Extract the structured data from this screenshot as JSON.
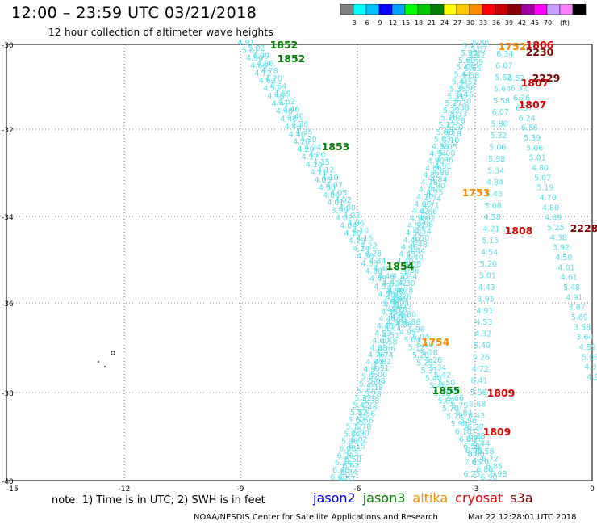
{
  "title": "12:00 – 23:59 UTC 03/21/2018",
  "subtitle": "12 hour collection of altimeter wave heights",
  "colorbar": {
    "unit": "(ft)",
    "colors": [
      "#808080",
      "#00ffff",
      "#00c0ff",
      "#0000ff",
      "#00a0ff",
      "#00ff00",
      "#00c800",
      "#008000",
      "#ffff00",
      "#ffc800",
      "#ff8c00",
      "#ff0000",
      "#c80000",
      "#8b0000",
      "#a000a0",
      "#ff00ff",
      "#c8a0ff",
      "#ff80ff",
      "#000000"
    ],
    "labels": [
      "3",
      "6",
      "9",
      "12",
      "15",
      "18",
      "21",
      "24",
      "27",
      "30",
      "33",
      "36",
      "39",
      "42",
      "45",
      "70"
    ]
  },
  "axes": {
    "y_ticks": [
      "-30",
      "-32",
      "-34",
      "-36",
      "-38",
      "-40"
    ],
    "x_ticks": [
      "-15",
      "-12",
      "-9",
      "-6",
      "-3",
      "0"
    ]
  },
  "tracks": [
    {
      "id": "jason3-desc",
      "color": "#55dfe8",
      "labels": [
        "4.91",
        "5.07",
        "4.90",
        "4.66",
        "4.72",
        "4.62",
        "4.51",
        "4.48",
        "4.41",
        "4.40",
        "4.48",
        "4.43",
        "4.40",
        "4.28",
        "4.20",
        "4.17",
        "4.14",
        "4.11",
        "4.05",
        "4.08",
        "4.04",
        "4.01",
        "3.99",
        "4.02",
        "4.04",
        "4.10",
        "4.19",
        "4.24",
        "4.30",
        "4.33",
        "4.38",
        "4.45",
        "4.52",
        "4.58",
        "4.62",
        "4.70",
        "4.81",
        "4.86",
        "4.95",
        "5.04",
        "5.12",
        "5.20",
        "5.25",
        "5.31",
        "5.40",
        "5.48",
        "5.56",
        "5.62",
        "5.70",
        "5.78",
        "5.90",
        "6.10",
        "6.30",
        "6.50",
        "6.60",
        "6.70",
        "6.80",
        "6.90"
      ]
    },
    {
      "id": "jason3-desc-b",
      "color": "#55dfe8",
      "labels": [
        "5.02",
        "4.99",
        "4.86",
        "4.78",
        "4.70",
        "4.64",
        "4.59",
        "4.52",
        "4.46",
        "4.40",
        "4.38",
        "4.35",
        "4.30",
        "4.24",
        "4.20",
        "4.15",
        "4.12",
        "4.10",
        "4.07",
        "4.05",
        "4.02",
        "4.00",
        "4.03",
        "4.06",
        "4.10",
        "4.15",
        "4.22",
        "4.28",
        "4.34",
        "4.40",
        "4.46",
        "4.53",
        "4.58",
        "4.65",
        "4.72",
        "4.80",
        "4.88",
        "4.96",
        "5.04",
        "5.10",
        "5.18",
        "5.26",
        "5.34",
        "5.42",
        "5.50",
        "5.58",
        "5.66",
        "5.75",
        "5.84",
        "5.96",
        "6.12",
        "6.28",
        "6.44",
        "6.58",
        "6.72",
        "6.85",
        "6.98"
      ]
    },
    {
      "id": "altika-asc",
      "color": "#55dfe8",
      "labels": [
        "5.86",
        "5.67",
        "5.82",
        "5.59",
        "5.65",
        "5.58",
        "5.52",
        "5.56",
        "5.46",
        "5.50",
        "5.38",
        "5.33",
        "5.28",
        "5.20",
        "5.18",
        "5.10",
        "5.05",
        "5.00",
        "4.96",
        "4.91",
        "4.88",
        "4.84",
        "4.80",
        "4.75",
        "4.74",
        "4.71",
        "4.66",
        "4.62",
        "4.58",
        "4.54",
        "4.50",
        "4.48",
        "4.44",
        "4.40",
        "4.38",
        "4.36",
        "4.34",
        "4.30",
        "4.28",
        "4.26",
        "4.24",
        "4.28",
        "4.33",
        "4.38",
        "4.44",
        "4.51",
        "4.58",
        "4.66",
        "4.74",
        "4.82",
        "4.91",
        "5.00",
        "5.08",
        "5.18",
        "5.28",
        "5.38",
        "5.48",
        "5.56",
        "5.66",
        "5.78",
        "5.90",
        "6.02",
        "6.15",
        "6.31",
        "6.50",
        "6.62",
        "6.34",
        "6.57"
      ]
    },
    {
      "id": "altika-asc-b",
      "color": "#55dfe8",
      "labels": [
        "5.71",
        "5.55",
        "5.60",
        "5.48",
        "5.44",
        "5.41",
        "5.35",
        "5.31",
        "5.27",
        "5.22",
        "5.16",
        "5.12",
        "5.08",
        "5.03",
        "4.98",
        "4.94",
        "4.90",
        "4.86",
        "4.82",
        "4.78",
        "4.74",
        "4.70",
        "4.66",
        "4.62",
        "4.58",
        "4.55",
        "4.52",
        "4.49",
        "4.46",
        "4.43",
        "4.40",
        "4.37",
        "4.35",
        "4.32",
        "4.30",
        "4.28",
        "4.31",
        "4.35",
        "4.40",
        "4.46",
        "4.53",
        "4.60",
        "4.68",
        "4.76",
        "4.84",
        "4.92",
        "5.02",
        "5.12",
        "5.22",
        "5.32",
        "5.42",
        "5.52",
        "5.62",
        "5.72",
        "5.84",
        "5.96",
        "6.08",
        "6.20",
        "6.34",
        "6.48",
        "6.60"
      ]
    },
    {
      "id": "cryosat-col",
      "color": "#55dfe8",
      "labels": [
        "6.34",
        "6.07",
        "5.62",
        "5.64",
        "5.58",
        "6.07",
        "5.80",
        "5.32",
        "5.06",
        "5.98",
        "5.34",
        "4.84",
        "6.43",
        "5.68",
        "4.58",
        "4.21",
        "5.16",
        "4.54",
        "5.20",
        "5.01",
        "4.43",
        "3.95",
        "4.91",
        "4.53",
        "4.32",
        "5.40",
        "5.26",
        "4.72",
        "6.41",
        "5.56",
        "5.68",
        "6.43",
        "6.27",
        "6.76",
        "6.98",
        "7.05",
        "6.25"
      ]
    },
    {
      "id": "cryosat-col2",
      "color": "#55dfe8",
      "labels": [
        "6.52",
        "6.32",
        "6.26",
        "6.37",
        "6.24",
        "6.56",
        "5.39",
        "5.06",
        "5.01",
        "4.80",
        "5.07",
        "5.19",
        "4.70",
        "4.80",
        "4.89",
        "5.25",
        "4.38",
        "3.92",
        "4.50",
        "4.01",
        "4.61",
        "5.48",
        "4.91",
        "3.87",
        "5.69",
        "3.58",
        "3.64",
        "4.89",
        "5.08",
        "4.30",
        "4.98"
      ]
    }
  ],
  "time_labels": [
    {
      "text": "1852",
      "color": "#008000"
    },
    {
      "text": "1852",
      "color": "#008000"
    },
    {
      "text": "1853",
      "color": "#008000"
    },
    {
      "text": "1854",
      "color": "#008000"
    },
    {
      "text": "1855",
      "color": "#008000"
    },
    {
      "text": "1752",
      "color": "#ff8c00"
    },
    {
      "text": "1753",
      "color": "#ff8c00"
    },
    {
      "text": "1754",
      "color": "#ff8c00"
    },
    {
      "text": "1806",
      "color": "#e00000"
    },
    {
      "text": "1807",
      "color": "#e00000"
    },
    {
      "text": "1807",
      "color": "#e00000"
    },
    {
      "text": "1808",
      "color": "#e00000"
    },
    {
      "text": "1809",
      "color": "#e00000"
    },
    {
      "text": "1809",
      "color": "#e00000"
    },
    {
      "text": "2230",
      "color": "#800000"
    },
    {
      "text": "2229",
      "color": "#800000"
    },
    {
      "text": "2228",
      "color": "#800000"
    }
  ],
  "note": "note: 1) Time is in UTC; 2) SWH is in feet",
  "legend": [
    {
      "label": "jason2",
      "color": "#0000ff"
    },
    {
      "label": "jason3",
      "color": "#008000"
    },
    {
      "label": "altika",
      "color": "#ff8c00"
    },
    {
      "label": "cryosat",
      "color": "#e00000"
    },
    {
      "label": "s3a",
      "color": "#800000"
    }
  ],
  "footer": "NOAA/NESDIS Center for Satellite Applications and Research",
  "footer_time": "Mar 22 12:28:01 UTC 2018"
}
